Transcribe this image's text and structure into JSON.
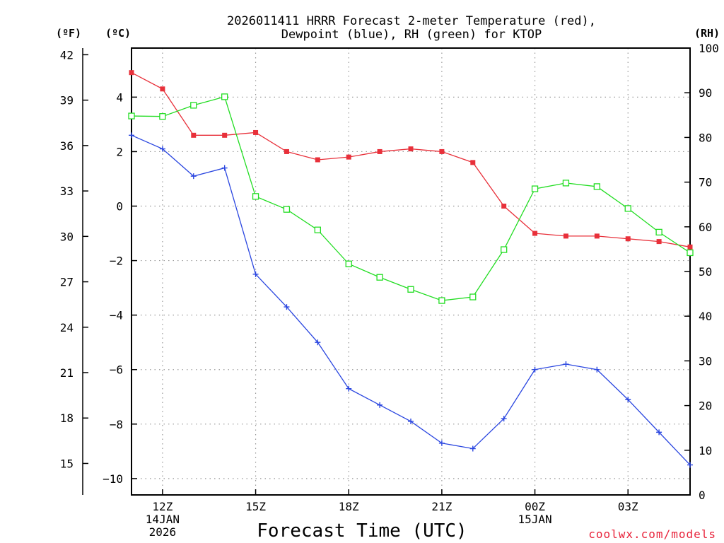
{
  "chart_data": {
    "type": "line",
    "title_line1": "2026011411 HRRR Forecast 2-meter Temperature (red),",
    "title_line2": "Dewpoint (blue), RH (green) for KTOP",
    "xlabel": "Forecast Time (UTC)",
    "credit": "coolwx.com/models",
    "unit_left_f": "(ºF)",
    "unit_left_c": "(ºC)",
    "unit_right_rh": "(RH)",
    "x_hours": [
      11,
      12,
      13,
      14,
      15,
      16,
      17,
      18,
      19,
      20,
      21,
      22,
      23,
      24,
      25,
      26,
      27,
      28,
      29
    ],
    "xlim": [
      11,
      29
    ],
    "x_ticks": [
      {
        "hour": 12,
        "lines": [
          "12Z",
          "14JAN",
          "2026"
        ]
      },
      {
        "hour": 15,
        "lines": [
          "15Z"
        ]
      },
      {
        "hour": 18,
        "lines": [
          "18Z"
        ]
      },
      {
        "hour": 21,
        "lines": [
          "21Z"
        ]
      },
      {
        "hour": 24,
        "lines": [
          "00Z",
          "15JAN"
        ]
      },
      {
        "hour": 27,
        "lines": [
          "03Z"
        ]
      }
    ],
    "celsius_axis": {
      "ylim": [
        -10.6,
        5.8
      ],
      "ticks": [
        4,
        2,
        0,
        -2,
        -4,
        -6,
        -8,
        -10
      ]
    },
    "fahrenheit_axis": {
      "ticks": [
        42,
        39,
        36,
        33,
        30,
        27,
        24,
        21,
        18,
        15
      ]
    },
    "rh_axis": {
      "ylim": [
        0,
        100
      ],
      "ticks": [
        100,
        90,
        80,
        70,
        60,
        50,
        40,
        30,
        20,
        10,
        0
      ]
    },
    "series": [
      {
        "name": "Temperature",
        "units": "C",
        "color": "#e8303a",
        "marker": "filled-square",
        "values": [
          4.9,
          4.3,
          2.6,
          2.6,
          2.7,
          2.0,
          1.7,
          1.8,
          2.0,
          2.1,
          2.0,
          1.6,
          0.0,
          -1.0,
          -1.1,
          -1.1,
          -1.2,
          -1.3,
          -1.5
        ]
      },
      {
        "name": "Dewpoint",
        "units": "C",
        "color": "#2a46e0",
        "marker": "plus",
        "values": [
          2.6,
          2.1,
          1.1,
          1.4,
          -2.5,
          -3.7,
          -5.0,
          -6.7,
          -7.3,
          -7.9,
          -8.7,
          -8.9,
          -7.8,
          -6.0,
          -5.8,
          -6.0,
          -7.1,
          -8.3,
          -9.5
        ]
      },
      {
        "name": "RH",
        "units": "%",
        "color": "#22dd22",
        "marker": "open-square",
        "values": [
          84.8,
          84.7,
          87.2,
          89.1,
          66.8,
          63.9,
          59.3,
          51.7,
          48.7,
          46.0,
          43.5,
          44.3,
          54.9,
          68.5,
          69.8,
          69.0,
          64.1,
          58.8,
          54.2
        ]
      }
    ]
  }
}
